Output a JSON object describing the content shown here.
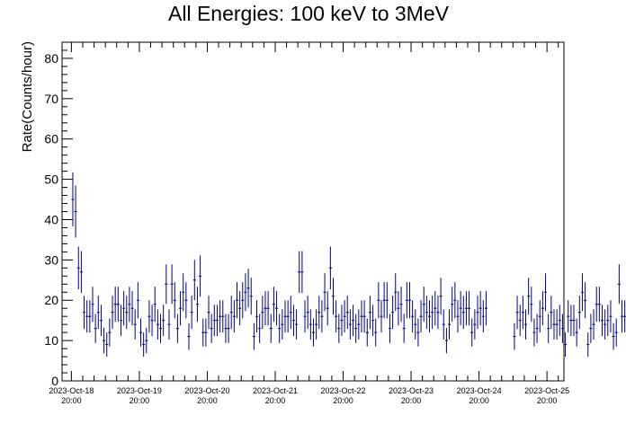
{
  "chart_data": {
    "type": "scatter",
    "title": "All Energies:  100 keV to 3MeV",
    "xlabel": "",
    "ylabel": "Rate(Counts/hour)",
    "ylim": [
      0,
      84
    ],
    "yticks": [
      0,
      10,
      20,
      30,
      40,
      50,
      60,
      70,
      80
    ],
    "xlim_hours": [
      -3.3,
      174
    ],
    "xtick_labels": [
      {
        "date": "2023-Oct-18",
        "time": "20:00"
      },
      {
        "date": "2023-Oct-19",
        "time": "20:00"
      },
      {
        "date": "2023-Oct-20",
        "time": "20:00"
      },
      {
        "date": "2023-Oct-21",
        "time": "20:00"
      },
      {
        "date": "2023-Oct-22",
        "time": "20:00"
      },
      {
        "date": "2023-Oct-23",
        "time": "20:00"
      },
      {
        "date": "2023-Oct-24",
        "time": "20:00"
      },
      {
        "date": "2023-Oct-25",
        "time": "20:00"
      }
    ],
    "error_bars": "sqrt(N)",
    "marker_color": "#000080",
    "grid": false,
    "legend": "none",
    "values": [
      45,
      42,
      28,
      27,
      17,
      16,
      16,
      19,
      13,
      17,
      15,
      10,
      9,
      12,
      17,
      19,
      19,
      15,
      18,
      17,
      19,
      18,
      14,
      20,
      12,
      9,
      10,
      16,
      15,
      19,
      14,
      13,
      15,
      24,
      14,
      24,
      20,
      13,
      18,
      22,
      20,
      11,
      17,
      25,
      19,
      26,
      12,
      12,
      17,
      13,
      15,
      15,
      16,
      16,
      13,
      13,
      17,
      16,
      20,
      18,
      20,
      22,
      23,
      21,
      11,
      16,
      13,
      17,
      18,
      18,
      13,
      19,
      18,
      13,
      14,
      16,
      16,
      17,
      15,
      14,
      27,
      27,
      16,
      17,
      14,
      12,
      14,
      17,
      16,
      22,
      18,
      28,
      21,
      16,
      13,
      15,
      16,
      17,
      14,
      15,
      13,
      14,
      16,
      16,
      12,
      17,
      15,
      12,
      20,
      16,
      20,
      20,
      13,
      17,
      22,
      18,
      19,
      13,
      20,
      20,
      16,
      14,
      12,
      16,
      19,
      17,
      16,
      17,
      18,
      17,
      21,
      14,
      10,
      14,
      19,
      20,
      16,
      18,
      17,
      18,
      18,
      12,
      14,
      17,
      18,
      16,
      18,
      null,
      null,
      null,
      null,
      null,
      null,
      null,
      null,
      null,
      11,
      17,
      15,
      17,
      14,
      21,
      19,
      12,
      13,
      16,
      18,
      22,
      13,
      17,
      14,
      14,
      15,
      13,
      9,
      16,
      15,
      15,
      12,
      17,
      22,
      20,
      9,
      13,
      14,
      19,
      19,
      15,
      14,
      15,
      16,
      11,
      12,
      24,
      16,
      16,
      18,
      15,
      14,
      15,
      9,
      13,
      12,
      13,
      17,
      20,
      17,
      17,
      18,
      12
    ]
  }
}
